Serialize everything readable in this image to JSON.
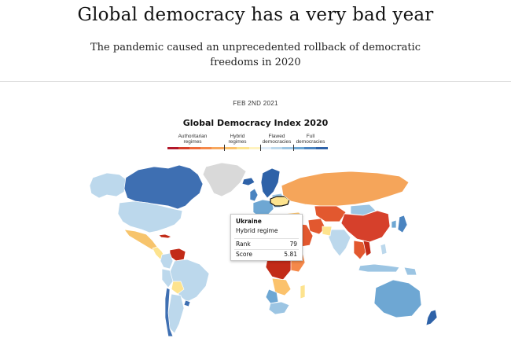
{
  "article": {
    "headline": "Global democracy has a very bad year",
    "subheadline": "The pandemic caused an unprecedented rollback of democratic freedoms in 2020"
  },
  "graphic": {
    "date": "FEB 2ND 2021",
    "title": "Global Democracy Index 2020",
    "legend": [
      {
        "label": "Authoritarian regimes",
        "color": "#d7301f"
      },
      {
        "label": "Hybrid regimes",
        "color": "#fdb863"
      },
      {
        "label": "Flawed democracies",
        "color": "#a6cee3"
      },
      {
        "label": "Full democracies",
        "color": "#2166ac"
      }
    ],
    "tooltip": {
      "country": "Ukraine",
      "regime": "Hybrid regime",
      "rank_label": "Rank",
      "rank_value": "79",
      "score_label": "Score",
      "score_value": "5.81"
    }
  },
  "colors": {
    "full_democracy": "#3e6fb2",
    "flawed_democracy": "#bcd8ec",
    "hybrid_regime": "#f7c46c",
    "authoritarian": "#e2582f",
    "authoritarian_deep": "#c22b18",
    "no_data": "#d9d9d9"
  }
}
